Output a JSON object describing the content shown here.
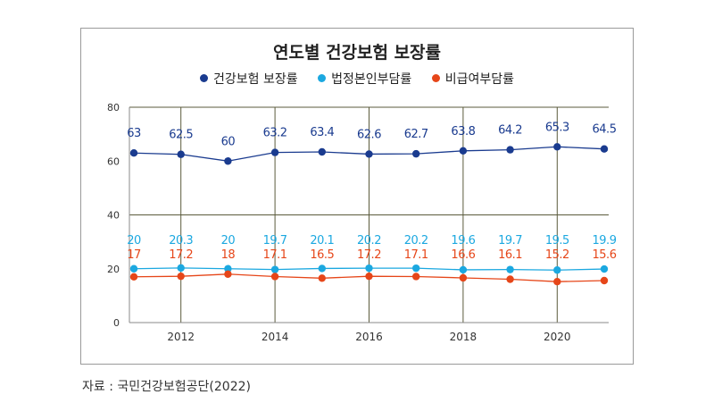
{
  "chart_data": {
    "type": "line",
    "title": "연도별 건강보험 보장률",
    "x": [
      2011,
      2012,
      2013,
      2014,
      2015,
      2016,
      2017,
      2018,
      2019,
      2020,
      2021
    ],
    "x_ticks": [
      "2012",
      "2014",
      "2016",
      "2018",
      "2020"
    ],
    "y_ticks": [
      "0",
      "20",
      "40",
      "60",
      "80"
    ],
    "ylim": [
      0,
      80
    ],
    "grid": "vertical lines at labeled years, horizontal at 40 and 80",
    "legend_position": "top",
    "series": [
      {
        "name": "건강보험 보장률",
        "color": "#1a3b8f",
        "values": [
          63,
          62.5,
          60,
          63.2,
          63.4,
          62.6,
          62.7,
          63.8,
          64.2,
          65.3,
          64.5
        ],
        "labels": [
          "63",
          "62.5",
          "60",
          "63.2",
          "63.4",
          "62.6",
          "62.7",
          "63.8",
          "64.2",
          "65.3",
          "64.5"
        ]
      },
      {
        "name": "법정본인부담률",
        "color": "#1ba8e0",
        "values": [
          20,
          20.3,
          20,
          19.7,
          20.1,
          20.2,
          20.2,
          19.6,
          19.7,
          19.5,
          19.9
        ],
        "labels": [
          "20",
          "20.3",
          "20",
          "19.7",
          "20.1",
          "20.2",
          "20.2",
          "19.6",
          "19.7",
          "19.5",
          "19.9"
        ]
      },
      {
        "name": "비급여부담률",
        "color": "#e64619",
        "values": [
          17,
          17.2,
          18,
          17.1,
          16.5,
          17.2,
          17.1,
          16.6,
          16.1,
          15.2,
          15.6
        ],
        "labels": [
          "17",
          "17.2",
          "18",
          "17.1",
          "16.5",
          "17.2",
          "17.1",
          "16.6",
          "16.1",
          "15.2",
          "15.6"
        ]
      }
    ]
  },
  "source": "자료 : 국민건강보험공단(2022)"
}
